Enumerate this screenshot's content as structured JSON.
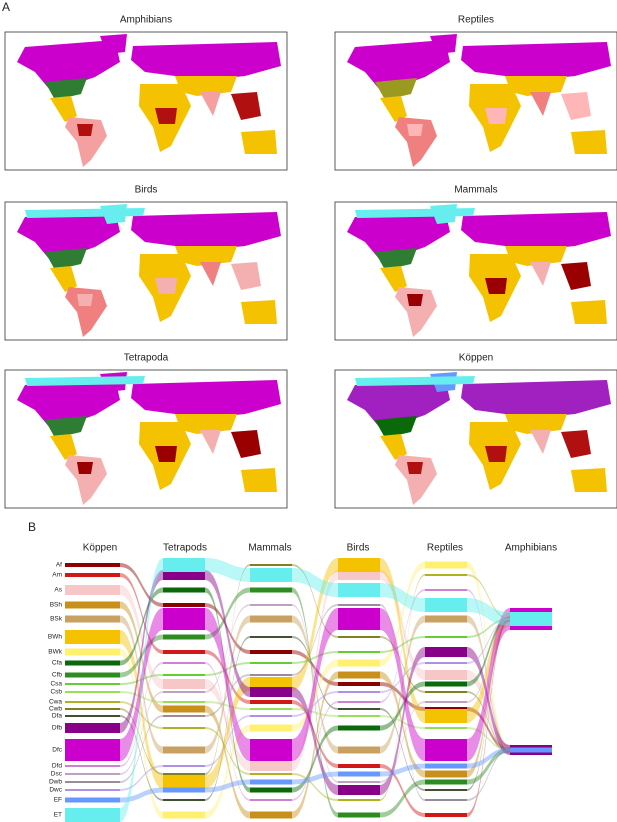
{
  "panel_a": {
    "label": "A",
    "maps": [
      {
        "title": "Amphibians"
      },
      {
        "title": "Reptiles"
      },
      {
        "title": "Birds"
      },
      {
        "title": "Mammals"
      },
      {
        "title": "Tetrapoda"
      },
      {
        "title": "Köppen"
      }
    ]
  },
  "panel_b": {
    "label": "B",
    "columns": [
      "Köppen",
      "Tetrapods",
      "Mammals",
      "Birds",
      "Reptiles",
      "Amphibians"
    ],
    "classes": [
      "Af",
      "Am",
      "As",
      "BSh",
      "BSk",
      "BWh",
      "BWk",
      "Cfa",
      "Cfb",
      "Csa",
      "Csb",
      "Cwa",
      "Cwb",
      "Dfa",
      "Dfb",
      "Dfc",
      "Dfd",
      "Dsc",
      "Dwb",
      "Dwc",
      "EF",
      "ET"
    ]
  }
}
